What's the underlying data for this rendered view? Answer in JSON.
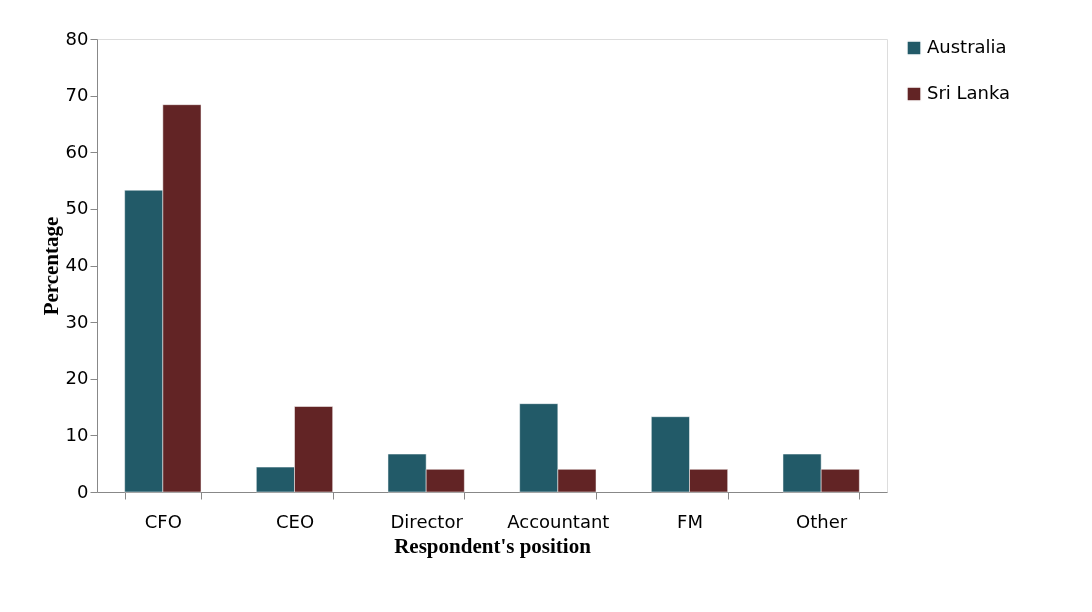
{
  "chart_data": {
    "type": "bar",
    "xlabel": "Respondent's position",
    "ylabel": "Percentage",
    "categories": [
      "CFO",
      "CEO",
      "Director",
      "Accountant",
      "FM",
      "Other"
    ],
    "series": [
      {
        "name": "Australia",
        "color": "#225a68",
        "values": [
          53.3,
          4.4,
          6.7,
          15.6,
          13.3,
          6.7
        ]
      },
      {
        "name": "Sri Lanka",
        "color": "#622425",
        "values": [
          68.4,
          15.1,
          4.0,
          4.0,
          4.0,
          4.0
        ]
      }
    ],
    "ylim": [
      0,
      80
    ],
    "yticks": [
      0,
      10,
      20,
      30,
      40,
      50,
      60,
      70,
      80
    ],
    "grid": false,
    "legend": "right"
  }
}
